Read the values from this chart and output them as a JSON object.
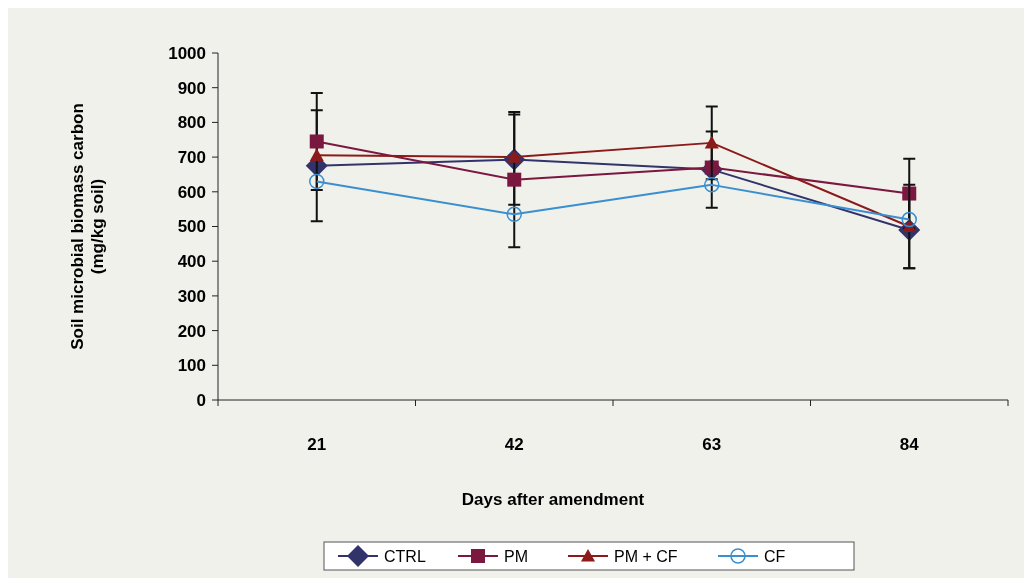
{
  "chart_data": {
    "type": "line",
    "xlabel": "Days after amendment",
    "ylabel": "Soil microbial biomass carbon (mg/kg soil)",
    "categories": [
      "21",
      "42",
      "63",
      "84"
    ],
    "ylim": [
      0,
      1000
    ],
    "yticks": [
      0,
      100,
      200,
      300,
      400,
      500,
      600,
      700,
      800,
      900,
      1000
    ],
    "grid": false,
    "legend": "bottom",
    "line_style": "solid",
    "series": [
      {
        "name": "CTRL",
        "color": "#33336b",
        "marker": "diamond",
        "values": [
          675,
          693,
          664,
          490
        ],
        "errors": [
          160,
          130,
          110,
          110
        ]
      },
      {
        "name": "PM",
        "color": "#7a1840",
        "marker": "square",
        "values": [
          745,
          635,
          670,
          595
        ],
        "errors": [
          140,
          195,
          null,
          100
        ]
      },
      {
        "name": "PM + CF",
        "color": "#8b1a1a",
        "marker": "triangle",
        "values": [
          705,
          700,
          741,
          500
        ],
        "errors": [
          null,
          null,
          105,
          120
        ]
      },
      {
        "name": "CF",
        "color": "#3a8fd0",
        "marker": "circle",
        "values": [
          630,
          535,
          620,
          520
        ],
        "errors": [
          null,
          null,
          null,
          null
        ]
      }
    ]
  }
}
